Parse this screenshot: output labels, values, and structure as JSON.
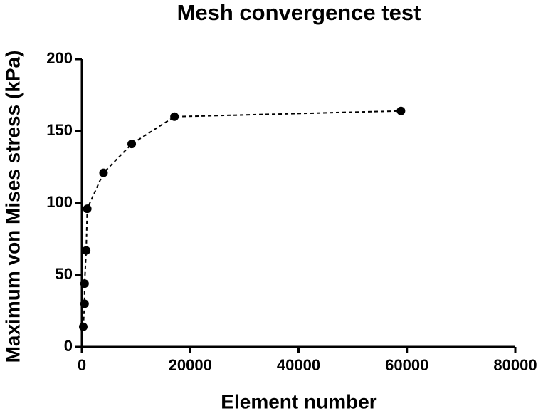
{
  "chart_data": {
    "type": "line",
    "title": "Mesh convergence test",
    "xlabel": "Element number",
    "ylabel": "Maximum von Mises stress (kPa)",
    "x": [
      260,
      500,
      500,
      800,
      1000,
      4000,
      9200,
      17100,
      58900
    ],
    "series": [
      {
        "color": "#000000",
        "values": [
          14,
          30,
          44,
          67,
          96,
          121,
          141,
          160,
          164
        ]
      }
    ],
    "line_style": "dashed",
    "marker": "circle",
    "xlim": [
      0,
      80000
    ],
    "xticks": [
      0,
      20000,
      40000,
      60000,
      80000
    ],
    "ylim": [
      0,
      200
    ],
    "yticks": [
      0,
      50,
      100,
      150,
      200
    ],
    "grid": false
  }
}
